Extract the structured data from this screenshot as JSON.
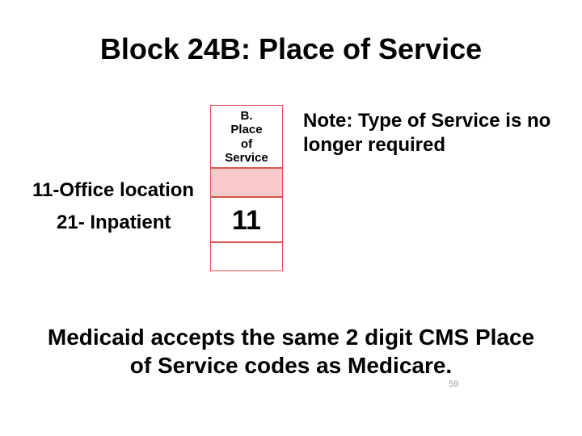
{
  "title": "Block 24B: Place of Service",
  "column": {
    "header_lines": "B.\nPlace\nof\nService",
    "header_border": "#d9534f",
    "pink_bg": "#f9c9c9",
    "value": "11"
  },
  "note": "Note: Type of Service is no longer required",
  "codes": {
    "office": "11-Office location",
    "inpatient": "21- Inpatient"
  },
  "footer": "Medicaid accepts the same 2 digit CMS Place of Service codes as Medicare.",
  "slide_number": "59",
  "colors": {
    "text": "#000000",
    "border": "#d9534f",
    "pink": "#f9c9c9",
    "background": "#ffffff"
  },
  "fonts": {
    "title_size": 36,
    "body_size": 24,
    "header_size": 15,
    "value_size": 34,
    "footer_size": 28
  }
}
